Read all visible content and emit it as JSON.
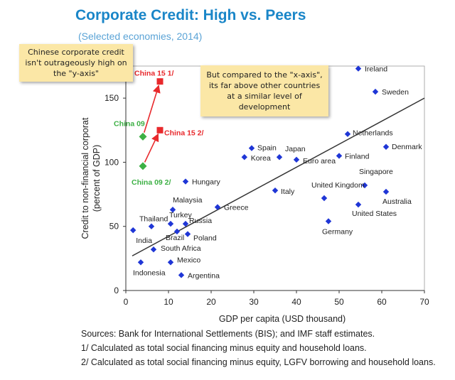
{
  "title": "Corporate Credit: High vs. Peers",
  "subtitle": "(Selected economies, 2014)",
  "notes": {
    "left": "Chinese corporate credit isn't outrageously high on the \"y-axis\"",
    "right": "But compared to the \"x-axis\", its far above other countries at a similar level of development"
  },
  "sources": [
    "Sources: Bank for International Settlements (BIS); and IMF staff estimates.",
    "1/ Calculated as total social financing minus equity and household loans.",
    "2/ Calculated as total social financing minus equity, LGFV borrowing and household loans."
  ],
  "chart_data": {
    "type": "scatter",
    "xlabel": "GDP per capita (USD thousand)",
    "ylabel": "Credit to non-financial corporat (percent of GDP)",
    "ylabel_lines": [
      "Credit to non-financial corporat",
      "(percent of GDP)"
    ],
    "xlim": [
      0,
      70
    ],
    "ylim": [
      0,
      175
    ],
    "xticks": [
      0,
      10,
      20,
      30,
      40,
      50,
      60,
      70
    ],
    "yticks": [
      0,
      50,
      100,
      150
    ],
    "grid": false,
    "colors": {
      "peers": "#1f36d6",
      "china_tsf": "#e8292c",
      "china_09": "#3db045",
      "trend": "#333333",
      "axis": "#333333"
    },
    "peers": [
      {
        "name": "Ireland",
        "x": 54.5,
        "y": 173
      },
      {
        "name": "Sweden",
        "x": 58.5,
        "y": 155
      },
      {
        "name": "Netherlands",
        "x": 52.0,
        "y": 122
      },
      {
        "name": "Denmark",
        "x": 61.0,
        "y": 112
      },
      {
        "name": "Spain",
        "x": 29.5,
        "y": 111
      },
      {
        "name": "Japan",
        "x": 36.0,
        "y": 104
      },
      {
        "name": "Korea",
        "x": 27.8,
        "y": 104
      },
      {
        "name": "Euro area",
        "x": 40.0,
        "y": 102
      },
      {
        "name": "Finland",
        "x": 50.0,
        "y": 105
      },
      {
        "name": "Singapore",
        "x": 56.0,
        "y": 82
      },
      {
        "name": "United Kingdom",
        "x": 46.5,
        "y": 72
      },
      {
        "name": "Australia",
        "x": 61.0,
        "y": 77
      },
      {
        "name": "United States",
        "x": 54.5,
        "y": 67
      },
      {
        "name": "Germany",
        "x": 47.5,
        "y": 54
      },
      {
        "name": "Italy",
        "x": 35.0,
        "y": 78
      },
      {
        "name": "Hungary",
        "x": 14.0,
        "y": 85
      },
      {
        "name": "Greece",
        "x": 21.5,
        "y": 65
      },
      {
        "name": "Malaysia",
        "x": 11.0,
        "y": 63
      },
      {
        "name": "Thailand",
        "x": 6.0,
        "y": 50
      },
      {
        "name": "Turkey",
        "x": 10.5,
        "y": 52
      },
      {
        "name": "Russia",
        "x": 14.0,
        "y": 52
      },
      {
        "name": "Brazil",
        "x": 12.0,
        "y": 46
      },
      {
        "name": "Poland",
        "x": 14.5,
        "y": 44
      },
      {
        "name": "India",
        "x": 1.7,
        "y": 47
      },
      {
        "name": "South Africa",
        "x": 6.5,
        "y": 32
      },
      {
        "name": "Mexico",
        "x": 10.5,
        "y": 22
      },
      {
        "name": "Indonesia",
        "x": 3.5,
        "y": 22
      },
      {
        "name": "Argentina",
        "x": 13.0,
        "y": 12
      }
    ],
    "china": [
      {
        "name": "China 15 1/",
        "x": 8.0,
        "y": 163,
        "color": "red",
        "shape": "square"
      },
      {
        "name": "China 15 2/",
        "x": 8.0,
        "y": 125,
        "color": "red",
        "shape": "square"
      },
      {
        "name": "China 09",
        "x": 4.0,
        "y": 120,
        "color": "green",
        "shape": "diamond"
      },
      {
        "name": "China 09 2/",
        "x": 4.0,
        "y": 97,
        "color": "green",
        "shape": "diamond"
      }
    ],
    "arrows": [
      {
        "from": "China 09",
        "to": "China 15 1/"
      },
      {
        "from": "China 09 2/",
        "to": "China 15 2/"
      }
    ],
    "trend": {
      "x1": 1.5,
      "y1": 27,
      "x2": 70,
      "y2": 150
    }
  }
}
